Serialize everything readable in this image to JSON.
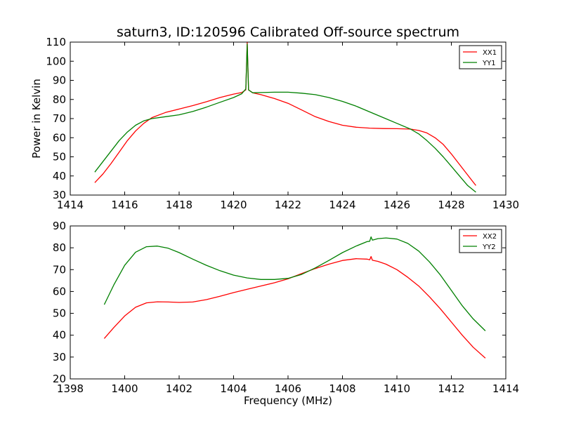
{
  "title": "saturn3, ID:120596 Calibrated Off-source spectrum",
  "xlabel": "Frequency (MHz)",
  "ylabel": "Power in Kelvin",
  "colors": {
    "XX": "#ff0000",
    "YY": "#008000"
  },
  "chart_data": [
    {
      "type": "line",
      "xlim": [
        1414,
        1430
      ],
      "ylim": [
        30,
        110
      ],
      "xticks": [
        1414,
        1416,
        1418,
        1420,
        1422,
        1424,
        1426,
        1428,
        1430
      ],
      "yticks": [
        30,
        40,
        50,
        60,
        70,
        80,
        90,
        100,
        110
      ],
      "legend_position": "top-right",
      "series": [
        {
          "name": "XX1",
          "color": "#ff0000",
          "x": [
            1414.9,
            1415.2,
            1415.5,
            1415.8,
            1416.1,
            1416.4,
            1416.7,
            1417.0,
            1417.5,
            1418.0,
            1418.5,
            1419.0,
            1419.5,
            1420.0,
            1420.3,
            1420.45,
            1420.5,
            1420.55,
            1420.7,
            1421.0,
            1421.5,
            1422.0,
            1422.5,
            1423.0,
            1423.5,
            1424.0,
            1424.5,
            1425.0,
            1425.5,
            1426.0,
            1426.5,
            1426.8,
            1427.1,
            1427.4,
            1427.7,
            1428.0,
            1428.3,
            1428.6,
            1428.9
          ],
          "values": [
            36.5,
            41.0,
            46.5,
            52.5,
            58.5,
            63.5,
            67.5,
            70.5,
            73.2,
            75.0,
            76.8,
            78.8,
            81.0,
            82.8,
            83.6,
            85.0,
            110.0,
            85.0,
            83.5,
            82.5,
            80.5,
            78.0,
            74.5,
            71.0,
            68.5,
            66.5,
            65.5,
            65.0,
            64.8,
            64.7,
            64.5,
            63.8,
            62.5,
            60.0,
            56.5,
            51.5,
            46.0,
            40.5,
            35.0
          ]
        },
        {
          "name": "YY1",
          "color": "#008000",
          "x": [
            1414.9,
            1415.2,
            1415.5,
            1415.8,
            1416.1,
            1416.4,
            1416.7,
            1417.0,
            1417.5,
            1418.0,
            1418.5,
            1419.0,
            1419.5,
            1420.0,
            1420.3,
            1420.45,
            1420.5,
            1420.55,
            1420.7,
            1421.0,
            1421.5,
            1422.0,
            1422.5,
            1423.0,
            1423.5,
            1424.0,
            1424.5,
            1425.0,
            1425.5,
            1426.0,
            1426.5,
            1426.8,
            1427.1,
            1427.4,
            1427.7,
            1428.0,
            1428.3,
            1428.6,
            1428.9
          ],
          "values": [
            42.0,
            47.5,
            53.0,
            58.5,
            63.0,
            66.5,
            68.8,
            70.0,
            71.0,
            72.0,
            73.7,
            76.0,
            78.5,
            81.0,
            83.0,
            85.5,
            109.0,
            85.0,
            83.5,
            83.6,
            83.8,
            83.8,
            83.3,
            82.5,
            81.0,
            79.0,
            76.5,
            73.5,
            70.5,
            67.5,
            64.5,
            62.0,
            58.5,
            54.5,
            50.0,
            45.0,
            40.0,
            35.0,
            31.5
          ]
        }
      ]
    },
    {
      "type": "line",
      "xlim": [
        1398,
        1414
      ],
      "ylim": [
        20,
        90
      ],
      "xticks": [
        1398,
        1400,
        1402,
        1404,
        1406,
        1408,
        1410,
        1412,
        1414
      ],
      "yticks": [
        20,
        30,
        40,
        50,
        60,
        70,
        80,
        90
      ],
      "legend_position": "top-right",
      "series": [
        {
          "name": "XX2",
          "color": "#ff0000",
          "x": [
            1399.25,
            1399.6,
            1400.0,
            1400.4,
            1400.8,
            1401.2,
            1401.6,
            1402.0,
            1402.5,
            1403.0,
            1403.5,
            1404.0,
            1404.5,
            1405.0,
            1405.5,
            1406.0,
            1406.5,
            1407.0,
            1407.5,
            1408.0,
            1408.5,
            1408.9,
            1409.0,
            1409.05,
            1409.1,
            1409.3,
            1409.6,
            1410.0,
            1410.4,
            1410.8,
            1411.2,
            1411.6,
            1412.0,
            1412.4,
            1412.8,
            1413.25
          ],
          "values": [
            38.5,
            43.5,
            48.8,
            52.8,
            54.8,
            55.3,
            55.2,
            55.0,
            55.2,
            56.3,
            57.8,
            59.5,
            61.0,
            62.5,
            64.0,
            65.8,
            68.2,
            70.5,
            72.5,
            74.2,
            75.0,
            74.8,
            74.5,
            76.0,
            74.3,
            73.8,
            72.5,
            70.0,
            66.5,
            62.5,
            57.5,
            52.0,
            46.0,
            40.0,
            34.5,
            29.5
          ]
        },
        {
          "name": "YY2",
          "color": "#008000",
          "x": [
            1399.25,
            1399.6,
            1400.0,
            1400.4,
            1400.8,
            1401.2,
            1401.6,
            1402.0,
            1402.5,
            1403.0,
            1403.5,
            1404.0,
            1404.5,
            1405.0,
            1405.5,
            1406.0,
            1406.5,
            1407.0,
            1407.5,
            1408.0,
            1408.5,
            1408.9,
            1409.0,
            1409.05,
            1409.1,
            1409.3,
            1409.6,
            1410.0,
            1410.4,
            1410.8,
            1411.2,
            1411.6,
            1412.0,
            1412.4,
            1412.8,
            1413.25
          ],
          "values": [
            54.0,
            63.0,
            72.0,
            78.0,
            80.5,
            80.8,
            79.8,
            77.8,
            74.8,
            72.0,
            69.5,
            67.5,
            66.2,
            65.5,
            65.5,
            66.0,
            67.8,
            70.8,
            74.2,
            77.8,
            80.8,
            82.8,
            83.0,
            85.0,
            83.5,
            84.2,
            84.5,
            84.0,
            82.0,
            78.5,
            73.5,
            67.5,
            60.5,
            53.5,
            47.5,
            42.0
          ]
        }
      ]
    }
  ]
}
